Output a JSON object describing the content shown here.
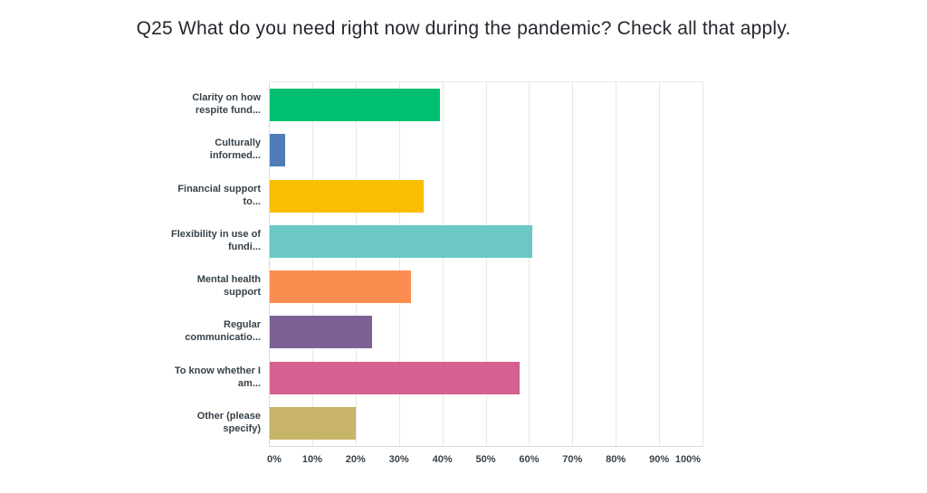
{
  "title": "Q25 What do you need right now during the pandemic? Check all that apply.",
  "chart_data": {
    "type": "bar",
    "orientation": "horizontal",
    "title": "Q25 What do you need right now during the pandemic? Check all that apply.",
    "categories": [
      "Clarity on how respite fund...",
      "Culturally informed...",
      "Financial support to...",
      "Flexibility in use of fundi...",
      "Mental health support",
      "Regular communicatio...",
      "To know whether I am...",
      "Other (please specify)"
    ],
    "values": [
      39.2,
      3.6,
      35.5,
      60.5,
      32.5,
      23.5,
      57.6,
      19.8
    ],
    "bar_colors": [
      "#00BF6F",
      "#4E7CB8",
      "#F9BE00",
      "#6BC8C5",
      "#FB8D50",
      "#7D6194",
      "#D4618F",
      "#C7B469"
    ],
    "x_ticks": [
      "0%",
      "10%",
      "20%",
      "30%",
      "40%",
      "50%",
      "60%",
      "70%",
      "80%",
      "90%",
      "100%"
    ],
    "xlim": [
      0,
      100
    ],
    "xlabel": "",
    "ylabel": "",
    "grid": "vertical",
    "legend": "none",
    "colors": {
      "title_text": "#24282e",
      "label_text": "#37424a",
      "gridline": "#e6e7e8",
      "axis_line": "#d9dbdc",
      "background": "#ffffff"
    }
  }
}
